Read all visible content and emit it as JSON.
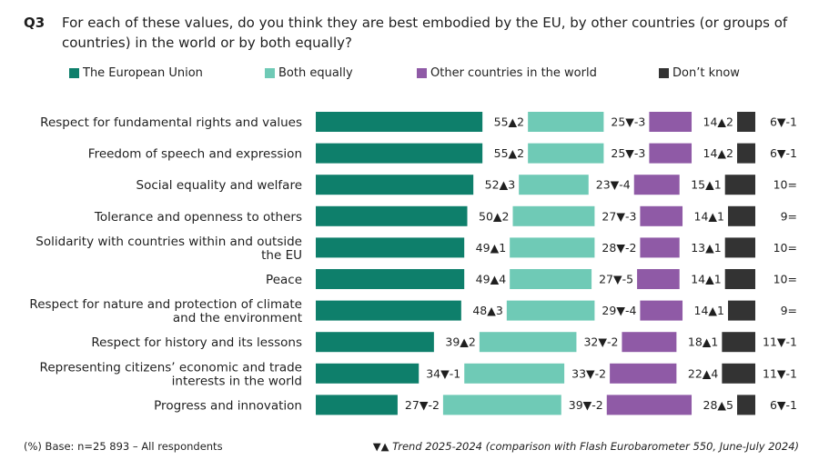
{
  "header": {
    "qid": "Q3",
    "question": "For each of these values, do you think they are best embodied by the EU, by other countries (or groups of countries) in the world or by both equally?"
  },
  "legend": [
    {
      "label": "The European Union",
      "color": "#0e7f6b"
    },
    {
      "label": "Both equally",
      "color": "#6fcab6"
    },
    {
      "label": "Other countries in the world",
      "color": "#8f5aa6"
    },
    {
      "label": "Don’t know",
      "color": "#333333"
    }
  ],
  "footer": {
    "base": "(%) Base: n=25 893 – All respondents",
    "trend_arrows": "▼▲",
    "trend": "Trend 2025-2024 (comparison with Flash Eurobarometer 550, June-July 2024)"
  },
  "chart_data": {
    "type": "bar",
    "stacked": true,
    "orientation": "horizontal",
    "categories": [
      "Respect for fundamental rights and values",
      "Freedom of speech and expression",
      "Social equality and welfare",
      "Tolerance and openness to others",
      "Solidarity with countries within and outside the EU",
      "Peace",
      "Respect for nature and protection of climate and the environment",
      "Respect for history and its lessons",
      "Representing citizens’ economic and trade interests in the world",
      "Progress and innovation"
    ],
    "category_lines": [
      [
        "Respect for fundamental rights and values"
      ],
      [
        "Freedom of speech and expression"
      ],
      [
        "Social equality and welfare"
      ],
      [
        "Tolerance and openness to others"
      ],
      [
        "Solidarity with countries within and outside",
        "the EU"
      ],
      [
        "Peace"
      ],
      [
        "Respect for nature and protection of climate",
        "and the environment"
      ],
      [
        "Respect for history and its lessons"
      ],
      [
        "Representing citizens’ economic and trade",
        "interests in the world"
      ],
      [
        "Progress and innovation"
      ]
    ],
    "series": [
      {
        "name": "The European Union",
        "color": "#0e7f6b",
        "values": [
          55,
          55,
          52,
          50,
          49,
          49,
          48,
          39,
          34,
          27
        ],
        "trend": [
          "▲2",
          "▲2",
          "▲3",
          "▲2",
          "▲1",
          "▲4",
          "▲3",
          "▲2",
          "▼-1",
          "▼-2"
        ]
      },
      {
        "name": "Both equally",
        "color": "#6fcab6",
        "values": [
          25,
          25,
          23,
          27,
          28,
          27,
          29,
          32,
          33,
          39
        ],
        "trend": [
          "▼-3",
          "▼-3",
          "▼-4",
          "▼-3",
          "▼-2",
          "▼-5",
          "▼-4",
          "▼-2",
          "▼-2",
          "▼-2"
        ]
      },
      {
        "name": "Other countries in the world",
        "color": "#8f5aa6",
        "values": [
          14,
          14,
          15,
          14,
          13,
          14,
          14,
          18,
          22,
          28
        ],
        "trend": [
          "▲2",
          "▲2",
          "▲1",
          "▲1",
          "▲1",
          "▲1",
          "▲1",
          "▲1",
          "▲4",
          "▲5"
        ]
      },
      {
        "name": "Don’t know",
        "color": "#333333",
        "values": [
          6,
          6,
          10,
          9,
          10,
          10,
          9,
          11,
          11,
          6
        ],
        "trend": [
          "▼-1",
          "▼-1",
          "=",
          "=",
          "=",
          "=",
          "=",
          "▼-1",
          "▼-1",
          "▼-1"
        ]
      }
    ],
    "xlim": [
      0,
      100
    ],
    "unit": "%"
  }
}
